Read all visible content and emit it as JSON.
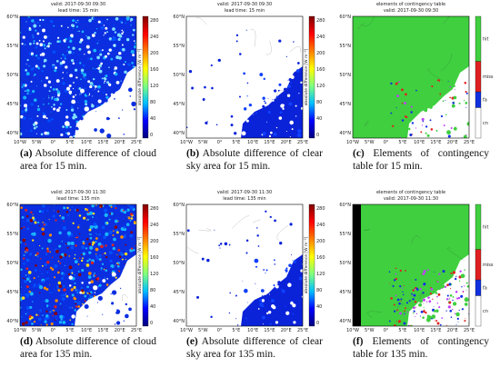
{
  "lat_ticks": [
    "60°N",
    "55°N",
    "50°N",
    "45°N",
    "40°N"
  ],
  "lon_ticks": [
    "10°W",
    "5°W",
    "0°",
    "5°E",
    "10°E",
    "15°E",
    "20°E",
    "25°E"
  ],
  "colorbar_ticks": [
    "280",
    "240",
    "200",
    "160",
    "120",
    "80",
    "40",
    "0"
  ],
  "colorbar_label": "absolute difference [W m⁻²]",
  "contingency_labels": [
    "hit",
    "miss",
    "fa",
    "cn"
  ],
  "panels": [
    {
      "kind": "cloud",
      "title": [
        "valid: 2017-09-30 09:30",
        "lead time: 15 min"
      ],
      "caption_label": "(a)",
      "caption": "Absolute difference of cloud area for 15 min."
    },
    {
      "kind": "clear",
      "title": [
        "valid: 2017-09-30 09:30",
        "lead time: 15 min"
      ],
      "caption_label": "(b)",
      "caption": "Absolute difference of clear sky area for 15 min."
    },
    {
      "kind": "cont",
      "title": [
        "elements of contingency table",
        "valid: 2017-09-30 09:30"
      ],
      "caption_label": "(c)",
      "caption": "Elements of contingency table for 15 min."
    },
    {
      "kind": "cloud2",
      "title": [
        "valid: 2017-09-30 11:30",
        "lead time: 135 min"
      ],
      "caption_label": "(d)",
      "caption": "Absolute difference of cloud area for 135 min."
    },
    {
      "kind": "clear",
      "title": [
        "valid: 2017-09-30 11:30",
        "lead time: 135 min"
      ],
      "caption_label": "(e)",
      "caption": "Absolute difference of clear sky area for 135 min."
    },
    {
      "kind": "cont2",
      "title": [
        "elements of contingency table",
        "valid: 2017-09-30 11:30"
      ],
      "caption_label": "(f)",
      "caption": "Elements of contingency table for 135 min."
    }
  ]
}
